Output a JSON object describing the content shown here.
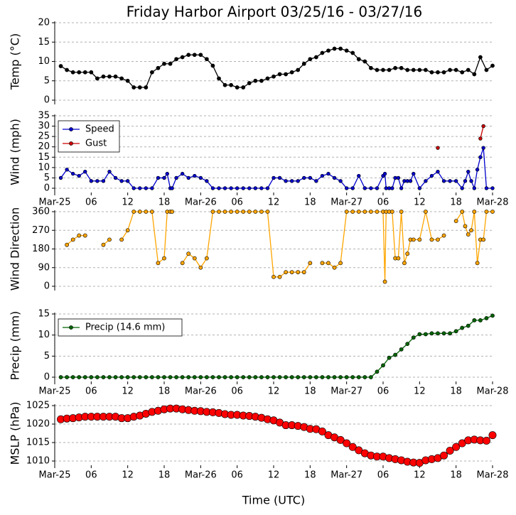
{
  "chart_data": [
    {
      "type": "line",
      "title": "Friday Harbor Airport 03/25/16 - 03/27/16",
      "ylabel": "Temp ($^\\circ$C)",
      "xlim": [
        0,
        72
      ],
      "ylim": [
        0,
        20
      ],
      "yticks": [
        0,
        5,
        10,
        15,
        20
      ],
      "grid": true,
      "series": [
        {
          "name": "Temp",
          "color": "#000000",
          "x": [
            1,
            2,
            3,
            4,
            5,
            6,
            7,
            8,
            9,
            10,
            11,
            12,
            13,
            14,
            15,
            16,
            17,
            18,
            19,
            20,
            21,
            22,
            23,
            24,
            25,
            26,
            27,
            28,
            29,
            30,
            31,
            32,
            33,
            34,
            35,
            36,
            37,
            38,
            39,
            40,
            41,
            42,
            43,
            44,
            45,
            46,
            47,
            48,
            49,
            50,
            51,
            52,
            53,
            54,
            55,
            56,
            57,
            58,
            59,
            60,
            61,
            62,
            63,
            64,
            65,
            66,
            67,
            68,
            69,
            70,
            71,
            72
          ],
          "values": [
            8.8,
            7.8,
            7.2,
            7.2,
            7.2,
            7.2,
            5.6,
            6.1,
            6.1,
            6.1,
            5.6,
            5,
            3.3,
            3.3,
            3.3,
            7.2,
            8.3,
            9.4,
            9.4,
            10.6,
            11.1,
            11.7,
            11.7,
            11.7,
            10.6,
            8.9,
            5.6,
            3.9,
            3.9,
            3.3,
            3.3,
            4.4,
            5,
            5,
            5.6,
            6.1,
            6.7,
            6.7,
            7.2,
            7.8,
            9.4,
            10.6,
            11.1,
            12.2,
            12.8,
            13.3,
            13.3,
            12.8,
            12.2,
            10.6,
            10,
            8.3,
            7.8,
            7.8,
            7.8,
            8.3,
            8.3,
            7.8,
            7.8,
            7.8,
            7.8,
            7.2,
            7.2,
            7.2,
            7.8,
            7.8,
            7.2,
            7.8,
            6.7,
            11.1,
            7.8,
            8.9
          ]
        }
      ]
    },
    {
      "type": "line",
      "ylabel": "Wind (mph)",
      "xlim": [
        0,
        72
      ],
      "ylim": [
        0,
        35
      ],
      "yticks": [
        0,
        5,
        10,
        15,
        20,
        25,
        30,
        35
      ],
      "grid": true,
      "legend": "upper left",
      "xticks": [
        {
          "value": 0,
          "label": "Mar-25"
        },
        {
          "value": 6,
          "label": "06"
        },
        {
          "value": 12,
          "label": "12"
        },
        {
          "value": 18,
          "label": "18"
        },
        {
          "value": 24,
          "label": "Mar-26"
        },
        {
          "value": 30,
          "label": "06"
        },
        {
          "value": 36,
          "label": "12"
        },
        {
          "value": 42,
          "label": "18"
        },
        {
          "value": 48,
          "label": "Mar-27"
        },
        {
          "value": 54,
          "label": "06"
        },
        {
          "value": 60,
          "label": "12"
        },
        {
          "value": 66,
          "label": "18"
        },
        {
          "value": 72,
          "label": "Mar-28"
        }
      ],
      "series": [
        {
          "name": "Speed",
          "color": "#0000cc",
          "x": [
            1,
            2,
            3,
            4,
            5,
            6,
            7,
            8,
            9,
            10,
            11,
            12,
            13,
            14,
            15,
            16,
            17,
            18,
            18.5,
            19,
            19.3,
            20,
            21,
            22,
            23,
            24,
            25,
            26,
            27,
            28,
            29,
            30,
            31,
            32,
            33,
            34,
            35,
            36,
            37,
            38,
            39,
            40,
            41,
            42,
            43,
            44,
            45,
            46,
            47,
            48,
            49,
            50,
            51,
            52,
            53,
            54,
            54.3,
            54.5,
            55,
            55.5,
            56,
            56.5,
            57,
            57.5,
            58,
            58.5,
            59,
            60,
            61,
            62,
            63,
            64,
            65,
            66,
            67,
            67.5,
            68,
            68.5,
            69,
            69.5,
            70,
            70.5,
            71,
            72
          ],
          "values": [
            5,
            9,
            7,
            6,
            8,
            3.5,
            3.5,
            3.5,
            8,
            5,
            3.5,
            3.5,
            0,
            0,
            0,
            0,
            5,
            5,
            7,
            0,
            0,
            5,
            7,
            5,
            6,
            5,
            3.5,
            0,
            0,
            0,
            0,
            0,
            0,
            0,
            0,
            0,
            0,
            5,
            5,
            3.5,
            3.5,
            3.5,
            5,
            5,
            3.5,
            6,
            7,
            5,
            3.5,
            0,
            0,
            6,
            0,
            0,
            0,
            6,
            7,
            0,
            0,
            0,
            5,
            5,
            0,
            3.5,
            3.5,
            3.5,
            7,
            0,
            3.5,
            6,
            8,
            3.5,
            3.5,
            3.5,
            0,
            3.5,
            8,
            3.5,
            0,
            9,
            15,
            19.5,
            0,
            0
          ]
        },
        {
          "name": "Gust",
          "color": "#cc0000",
          "x": [
            63,
            64,
            70,
            70.5
          ],
          "values": [
            19.5,
            null,
            24,
            30
          ]
        }
      ]
    },
    {
      "type": "line",
      "ylabel": "Wind Direction",
      "xlim": [
        0,
        72
      ],
      "ylim": [
        0,
        360
      ],
      "yticks": [
        0,
        90,
        180,
        270,
        360
      ],
      "grid": true,
      "series": [
        {
          "name": "Direction",
          "color": "#ffa500",
          "x": [
            2,
            3,
            4,
            5,
            6.5,
            8,
            9,
            10,
            11,
            12,
            13,
            14,
            15,
            16,
            17,
            18,
            18.5,
            19,
            19.3,
            20,
            21,
            22,
            23,
            24,
            25,
            26,
            27,
            28,
            29,
            30,
            31,
            32,
            33,
            34,
            35,
            36,
            37,
            38,
            39,
            40,
            41,
            42,
            43,
            44,
            45,
            46,
            47,
            48,
            49,
            50,
            51,
            52,
            53,
            54,
            54.3,
            54.5,
            55,
            55.5,
            56,
            56.5,
            57,
            57.5,
            58,
            58.5,
            59,
            60,
            61,
            62,
            63,
            64,
            65,
            66,
            67,
            67.5,
            68,
            68.5,
            69,
            69.5,
            70,
            70.5,
            71,
            72
          ],
          "values": [
            200,
            225,
            245,
            245,
            null,
            200,
            225,
            null,
            225,
            270,
            360,
            360,
            360,
            360,
            112,
            135,
            360,
            360,
            360,
            null,
            112,
            157,
            135,
            90,
            135,
            360,
            360,
            360,
            360,
            360,
            360,
            360,
            360,
            360,
            360,
            45,
            45,
            68,
            68,
            68,
            68,
            112,
            null,
            112,
            112,
            90,
            112,
            360,
            360,
            360,
            360,
            360,
            360,
            360,
            22,
            360,
            360,
            360,
            135,
            135,
            360,
            112,
            157,
            225,
            225,
            225,
            360,
            225,
            225,
            245,
            null,
            315,
            360,
            290,
            250,
            270,
            360,
            112,
            225,
            225,
            360,
            360
          ]
        }
      ]
    },
    {
      "type": "line",
      "ylabel": "Precip (mm)",
      "xlim": [
        0,
        72
      ],
      "ylim": [
        0,
        15
      ],
      "yticks": [
        0,
        5,
        10,
        15
      ],
      "grid": true,
      "legend": "upper left",
      "xticks": [
        {
          "value": 0,
          "label": "Mar-25"
        },
        {
          "value": 6,
          "label": "06"
        },
        {
          "value": 12,
          "label": "12"
        },
        {
          "value": 18,
          "label": "18"
        },
        {
          "value": 24,
          "label": "Mar-26"
        },
        {
          "value": 30,
          "label": "06"
        },
        {
          "value": 36,
          "label": "12"
        },
        {
          "value": 42,
          "label": "18"
        },
        {
          "value": 48,
          "label": "Mar-27"
        },
        {
          "value": 54,
          "label": "06"
        },
        {
          "value": 60,
          "label": "12"
        },
        {
          "value": 66,
          "label": "18"
        },
        {
          "value": 72,
          "label": "Mar-28"
        }
      ],
      "series": [
        {
          "name": "Precip (14.6 mm)",
          "color": "#006400",
          "x": [
            1,
            2,
            3,
            4,
            5,
            6,
            7,
            8,
            9,
            10,
            11,
            12,
            13,
            14,
            15,
            16,
            17,
            18,
            19,
            20,
            21,
            22,
            23,
            24,
            25,
            26,
            27,
            28,
            29,
            30,
            31,
            32,
            33,
            34,
            35,
            36,
            37,
            38,
            39,
            40,
            41,
            42,
            43,
            44,
            45,
            46,
            47,
            48,
            49,
            50,
            51,
            52,
            53,
            54,
            55,
            56,
            57,
            58,
            59,
            60,
            61,
            62,
            63,
            64,
            65,
            66,
            67,
            68,
            69,
            70,
            71,
            72
          ],
          "values": [
            0,
            0,
            0,
            0,
            0,
            0,
            0,
            0,
            0,
            0,
            0,
            0,
            0,
            0,
            0,
            0,
            0,
            0,
            0,
            0,
            0,
            0,
            0,
            0,
            0,
            0,
            0,
            0,
            0,
            0,
            0,
            0,
            0,
            0,
            0,
            0,
            0,
            0,
            0,
            0,
            0,
            0,
            0,
            0,
            0,
            0,
            0,
            0,
            0,
            0,
            0,
            0,
            1.3,
            2.8,
            4.6,
            5.3,
            6.6,
            7.9,
            9.4,
            10.2,
            10.2,
            10.4,
            10.4,
            10.4,
            10.4,
            10.9,
            11.7,
            12.2,
            13.5,
            13.5,
            14,
            14.6
          ]
        }
      ]
    },
    {
      "type": "line",
      "ylabel": "MSLP (hPa)",
      "xlabel": "Time (UTC)",
      "xlim": [
        0,
        72
      ],
      "ylim": [
        1010,
        1025
      ],
      "yticks": [
        1010,
        1015,
        1020,
        1025
      ],
      "grid": true,
      "xticks": [
        {
          "value": 0,
          "label": "Mar-25"
        },
        {
          "value": 6,
          "label": "06"
        },
        {
          "value": 12,
          "label": "12"
        },
        {
          "value": 18,
          "label": "18"
        },
        {
          "value": 24,
          "label": "Mar-26"
        },
        {
          "value": 30,
          "label": "06"
        },
        {
          "value": 36,
          "label": "12"
        },
        {
          "value": 42,
          "label": "18"
        },
        {
          "value": 48,
          "label": "Mar-27"
        },
        {
          "value": 54,
          "label": "06"
        },
        {
          "value": 60,
          "label": "12"
        },
        {
          "value": 66,
          "label": "18"
        },
        {
          "value": 72,
          "label": "Mar-28"
        }
      ],
      "series": [
        {
          "name": "MSLP",
          "color": "#ff0000",
          "x": [
            1,
            2,
            3,
            4,
            5,
            6,
            7,
            8,
            9,
            10,
            11,
            12,
            13,
            14,
            15,
            16,
            17,
            18,
            19,
            20,
            21,
            22,
            23,
            24,
            25,
            26,
            27,
            28,
            29,
            30,
            31,
            32,
            33,
            34,
            35,
            36,
            37,
            38,
            39,
            40,
            41,
            42,
            43,
            44,
            45,
            46,
            47,
            48,
            49,
            50,
            51,
            52,
            53,
            54,
            55,
            56,
            57,
            58,
            59,
            60,
            61,
            62,
            63,
            64,
            65,
            66,
            67,
            68,
            69,
            70,
            71,
            72
          ],
          "values": [
            1021.3,
            1021.5,
            1021.6,
            1021.8,
            1022,
            1022,
            1022,
            1022,
            1022,
            1022,
            1021.6,
            1021.6,
            1022,
            1022.3,
            1022.8,
            1023.3,
            1023.6,
            1024,
            1024.2,
            1024.2,
            1024,
            1023.8,
            1023.6,
            1023.5,
            1023.3,
            1023.2,
            1023,
            1022.7,
            1022.5,
            1022.5,
            1022.3,
            1022.2,
            1022,
            1021.7,
            1021.3,
            1021,
            1020.4,
            1019.7,
            1019.7,
            1019.5,
            1019.2,
            1018.7,
            1018.6,
            1018,
            1017,
            1016.4,
            1015.7,
            1014.8,
            1013.8,
            1012.9,
            1012.1,
            1011.5,
            1011.2,
            1011.2,
            1010.8,
            1010.5,
            1010.2,
            1009.8,
            1009.6,
            1009.5,
            1010.2,
            1010.5,
            1010.8,
            1011.5,
            1012.8,
            1013.8,
            1014.8,
            1015.6,
            1015.8,
            1015.6,
            1015.5,
            1017
          ]
        }
      ]
    }
  ]
}
